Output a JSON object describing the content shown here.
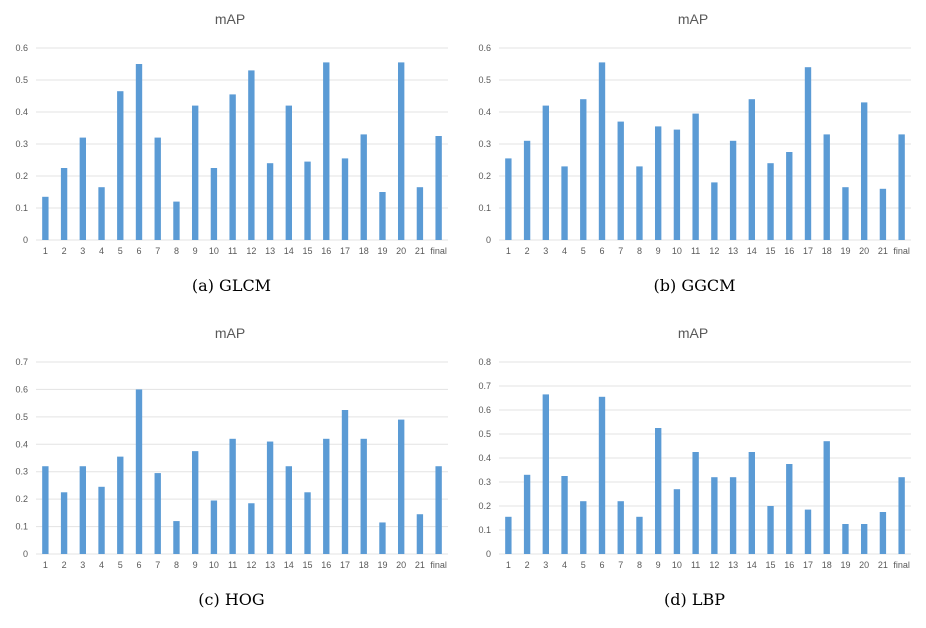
{
  "chart_data": [
    {
      "type": "bar",
      "title": "mAP",
      "caption": "(a)  GLCM",
      "categories": [
        "1",
        "2",
        "3",
        "4",
        "5",
        "6",
        "7",
        "8",
        "9",
        "10",
        "11",
        "12",
        "13",
        "14",
        "15",
        "16",
        "17",
        "18",
        "19",
        "20",
        "21",
        "final"
      ],
      "values": [
        0.135,
        0.225,
        0.32,
        0.165,
        0.465,
        0.55,
        0.32,
        0.12,
        0.42,
        0.225,
        0.455,
        0.53,
        0.24,
        0.42,
        0.245,
        0.555,
        0.255,
        0.33,
        0.15,
        0.555,
        0.165,
        0.325
      ],
      "ylim": [
        0,
        0.6
      ],
      "yticks": [
        "0",
        "0.1",
        "0.2",
        "0.3",
        "0.4",
        "0.5",
        "0.6"
      ],
      "grid": true
    },
    {
      "type": "bar",
      "title": "mAP",
      "caption": "(b)  GGCM",
      "categories": [
        "1",
        "2",
        "3",
        "4",
        "5",
        "6",
        "7",
        "8",
        "9",
        "10",
        "11",
        "12",
        "13",
        "14",
        "15",
        "16",
        "17",
        "18",
        "19",
        "20",
        "21",
        "final"
      ],
      "values": [
        0.255,
        0.31,
        0.42,
        0.23,
        0.44,
        0.555,
        0.37,
        0.23,
        0.355,
        0.345,
        0.395,
        0.18,
        0.31,
        0.44,
        0.24,
        0.275,
        0.54,
        0.33,
        0.165,
        0.43,
        0.16,
        0.33
      ],
      "ylim": [
        0,
        0.6
      ],
      "yticks": [
        "0",
        "0.1",
        "0.2",
        "0.3",
        "0.4",
        "0.5",
        "0.6"
      ],
      "grid": true
    },
    {
      "type": "bar",
      "title": "mAP",
      "caption": "(c)  HOG",
      "categories": [
        "1",
        "2",
        "3",
        "4",
        "5",
        "6",
        "7",
        "8",
        "9",
        "10",
        "11",
        "12",
        "13",
        "14",
        "15",
        "16",
        "17",
        "18",
        "19",
        "20",
        "21",
        "final"
      ],
      "values": [
        0.32,
        0.225,
        0.32,
        0.245,
        0.355,
        0.6,
        0.295,
        0.12,
        0.375,
        0.195,
        0.42,
        0.185,
        0.41,
        0.32,
        0.225,
        0.42,
        0.525,
        0.42,
        0.115,
        0.49,
        0.145,
        0.32
      ],
      "ylim": [
        0,
        0.7
      ],
      "yticks": [
        "0",
        "0.1",
        "0.2",
        "0.3",
        "0.4",
        "0.5",
        "0.6",
        "0.7"
      ],
      "grid": true
    },
    {
      "type": "bar",
      "title": "mAP",
      "caption": "(d)  LBP",
      "categories": [
        "1",
        "2",
        "3",
        "4",
        "5",
        "6",
        "7",
        "8",
        "9",
        "10",
        "11",
        "12",
        "13",
        "14",
        "15",
        "16",
        "17",
        "18",
        "19",
        "20",
        "21",
        "final"
      ],
      "values": [
        0.155,
        0.33,
        0.665,
        0.325,
        0.22,
        0.655,
        0.22,
        0.155,
        0.525,
        0.27,
        0.425,
        0.32,
        0.32,
        0.425,
        0.2,
        0.375,
        0.185,
        0.47,
        0.125,
        0.125,
        0.175,
        0.32
      ],
      "ylim": [
        0,
        0.8
      ],
      "yticks": [
        "0",
        "0.1",
        "0.2",
        "0.3",
        "0.4",
        "0.5",
        "0.6",
        "0.7",
        "0.8"
      ],
      "grid": true
    }
  ]
}
